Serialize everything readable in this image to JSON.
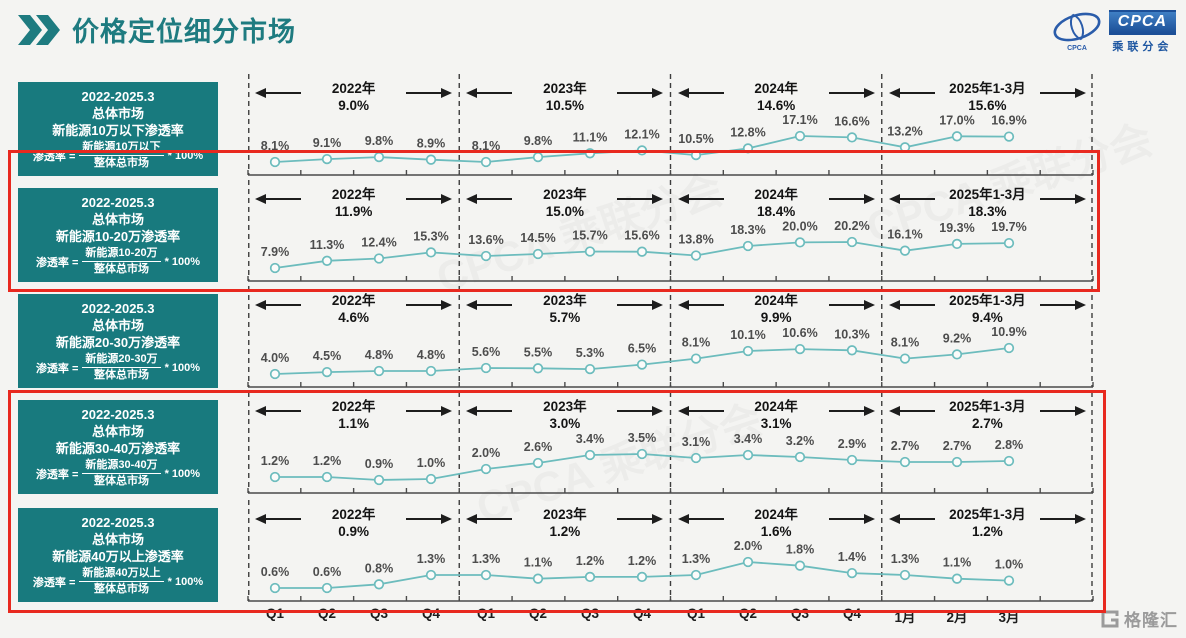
{
  "header": {
    "title": "价格定位细分市场"
  },
  "cpca_logo": {
    "abbr": "CPCA",
    "name": "乘联分会",
    "emblem_caption": "CPCA"
  },
  "gelonghui_logo": {
    "name": "格隆汇"
  },
  "watermark": "CPCA 乘联分会",
  "colors": {
    "teal_box": "#187a7e",
    "title_teal": "#1e7b80",
    "line": "#6cbcbd",
    "highlight_red": "#e8291f",
    "cpca_blue": "#1c55a0"
  },
  "x_axis": [
    "Q1",
    "Q2",
    "Q3",
    "Q4",
    "Q1",
    "Q2",
    "Q3",
    "Q4",
    "Q1",
    "Q2",
    "Q3",
    "Q4",
    "1月",
    "2月",
    "3月"
  ],
  "chart_data": [
    {
      "type": "line",
      "title": "新能源10万以下渗透率",
      "sidebar": {
        "period": "2022-2025.3",
        "market": "总体市场",
        "metric": "新能源10万以下渗透率",
        "formula_lhs": "渗透率 =",
        "numerator": "新能源10万以下",
        "denominator": "整体总市场",
        "multiplier": "* 100%"
      },
      "periods": [
        {
          "label": "2022年",
          "avg": "9.0%"
        },
        {
          "label": "2023年",
          "avg": "10.5%"
        },
        {
          "label": "2024年",
          "avg": "14.6%"
        },
        {
          "label": "2025年1-3月",
          "avg": "15.6%"
        }
      ],
      "categories": [
        "Q1",
        "Q2",
        "Q3",
        "Q4",
        "Q1",
        "Q2",
        "Q3",
        "Q4",
        "Q1",
        "Q2",
        "Q3",
        "Q4",
        "1月",
        "2月",
        "3月"
      ],
      "values": [
        8.1,
        9.1,
        9.8,
        8.9,
        8.1,
        9.8,
        11.1,
        12.1,
        10.5,
        12.8,
        17.1,
        16.6,
        13.2,
        17.0,
        16.9
      ],
      "highlighted": false
    },
    {
      "type": "line",
      "title": "新能源10-20万渗透率",
      "sidebar": {
        "period": "2022-2025.3",
        "market": "总体市场",
        "metric": "新能源10-20万渗透率",
        "formula_lhs": "渗透率 =",
        "numerator": "新能源10-20万",
        "denominator": "整体总市场",
        "multiplier": "* 100%"
      },
      "periods": [
        {
          "label": "2022年",
          "avg": "11.9%"
        },
        {
          "label": "2023年",
          "avg": "15.0%"
        },
        {
          "label": "2024年",
          "avg": "18.4%"
        },
        {
          "label": "2025年1-3月",
          "avg": "18.3%"
        }
      ],
      "categories": [
        "Q1",
        "Q2",
        "Q3",
        "Q4",
        "Q1",
        "Q2",
        "Q3",
        "Q4",
        "Q1",
        "Q2",
        "Q3",
        "Q4",
        "1月",
        "2月",
        "3月"
      ],
      "values": [
        7.9,
        11.3,
        12.4,
        15.3,
        13.6,
        14.5,
        15.7,
        15.6,
        13.8,
        18.3,
        20.0,
        20.2,
        16.1,
        19.3,
        19.7
      ],
      "highlighted": true
    },
    {
      "type": "line",
      "title": "新能源20-30万渗透率",
      "sidebar": {
        "period": "2022-2025.3",
        "market": "总体市场",
        "metric": "新能源20-30万渗透率",
        "formula_lhs": "渗透率 =",
        "numerator": "新能源20-30万",
        "denominator": "整体总市场",
        "multiplier": "* 100%"
      },
      "periods": [
        {
          "label": "2022年",
          "avg": "4.6%"
        },
        {
          "label": "2023年",
          "avg": "5.7%"
        },
        {
          "label": "2024年",
          "avg": "9.9%"
        },
        {
          "label": "2025年1-3月",
          "avg": "9.4%"
        }
      ],
      "categories": [
        "Q1",
        "Q2",
        "Q3",
        "Q4",
        "Q1",
        "Q2",
        "Q3",
        "Q4",
        "Q1",
        "Q2",
        "Q3",
        "Q4",
        "1月",
        "2月",
        "3月"
      ],
      "values": [
        4.0,
        4.5,
        4.8,
        4.8,
        5.6,
        5.5,
        5.3,
        6.5,
        8.1,
        10.1,
        10.6,
        10.3,
        8.1,
        9.2,
        10.9
      ],
      "highlighted": false
    },
    {
      "type": "line",
      "title": "新能源30-40万渗透率",
      "sidebar": {
        "period": "2022-2025.3",
        "market": "总体市场",
        "metric": "新能源30-40万渗透率",
        "formula_lhs": "渗透率 =",
        "numerator": "新能源30-40万",
        "denominator": "整体总市场",
        "multiplier": "* 100%"
      },
      "periods": [
        {
          "label": "2022年",
          "avg": "1.1%"
        },
        {
          "label": "2023年",
          "avg": "3.0%"
        },
        {
          "label": "2024年",
          "avg": "3.1%"
        },
        {
          "label": "2025年1-3月",
          "avg": "2.7%"
        }
      ],
      "categories": [
        "Q1",
        "Q2",
        "Q3",
        "Q4",
        "Q1",
        "Q2",
        "Q3",
        "Q4",
        "Q1",
        "Q2",
        "Q3",
        "Q4",
        "1月",
        "2月",
        "3月"
      ],
      "values": [
        1.2,
        1.2,
        0.9,
        1.0,
        2.0,
        2.6,
        3.4,
        3.5,
        3.1,
        3.4,
        3.2,
        2.9,
        2.7,
        2.7,
        2.8
      ],
      "highlighted": true
    },
    {
      "type": "line",
      "title": "新能源40万以上渗透率",
      "sidebar": {
        "period": "2022-2025.3",
        "market": "总体市场",
        "metric": "新能源40万以上渗透率",
        "formula_lhs": "渗透率 =",
        "numerator": "新能源40万以上",
        "denominator": "整体总市场",
        "multiplier": "* 100%"
      },
      "periods": [
        {
          "label": "2022年",
          "avg": "0.9%"
        },
        {
          "label": "2023年",
          "avg": "1.2%"
        },
        {
          "label": "2024年",
          "avg": "1.6%"
        },
        {
          "label": "2025年1-3月",
          "avg": "1.2%"
        }
      ],
      "categories": [
        "Q1",
        "Q2",
        "Q3",
        "Q4",
        "Q1",
        "Q2",
        "Q3",
        "Q4",
        "Q1",
        "Q2",
        "Q3",
        "Q4",
        "1月",
        "2月",
        "3月"
      ],
      "values": [
        0.6,
        0.6,
        0.8,
        1.3,
        1.3,
        1.1,
        1.2,
        1.2,
        1.3,
        2.0,
        1.8,
        1.4,
        1.3,
        1.1,
        1.0
      ],
      "highlighted": false
    }
  ]
}
